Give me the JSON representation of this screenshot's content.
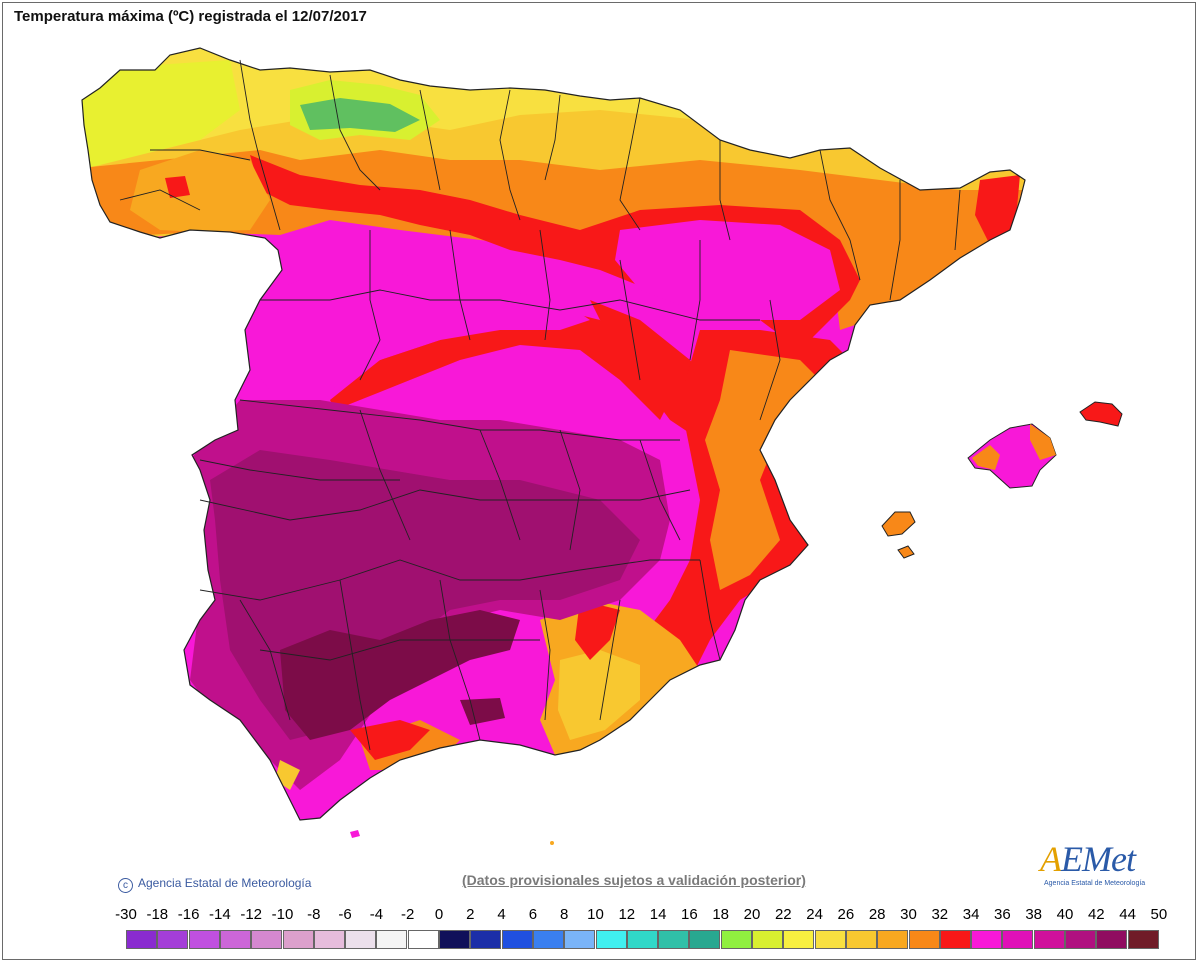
{
  "title": "Temperatura máxima (ºC) registrada el 12/07/2017",
  "copyright": "Agencia Estatal de Meteorología",
  "disclaimer": "(Datos provisionales sujetos a validación posterior)",
  "logo": {
    "wordmark_a": "A",
    "wordmark_rest": "EMet",
    "subtitle": "Agencia Estatal de Meteorología"
  },
  "legend": {
    "labels": [
      "-30",
      "-18",
      "-16",
      "-14",
      "-12",
      "-10",
      "-8",
      "-6",
      "-4",
      "-2",
      "0",
      "2",
      "4",
      "6",
      "8",
      "10",
      "12",
      "14",
      "16",
      "18",
      "20",
      "22",
      "24",
      "26",
      "28",
      "30",
      "32",
      "34",
      "36",
      "38",
      "40",
      "42",
      "44",
      "50"
    ],
    "colors": [
      "#8a2bd0",
      "#a43ed8",
      "#c050e0",
      "#cc66d8",
      "#d488d0",
      "#dca0cc",
      "#e6bcdc",
      "#ece0ec",
      "#f4f4f4",
      "#ffffff",
      "#10105a",
      "#1c2ea8",
      "#2050e0",
      "#3a7ff0",
      "#7ab4f8",
      "#40f0f0",
      "#30d8c8",
      "#30c0a8",
      "#28a890",
      "#90f040",
      "#d8f030",
      "#f8f040",
      "#f8e040",
      "#f8c830",
      "#f8a820",
      "#f88818",
      "#f81818",
      "#f818d8",
      "#e010b8",
      "#d0109c",
      "#b01080",
      "#900c60",
      "#701c28"
    ]
  },
  "map_legend_colors": {
    "sea": "#ffffff",
    "below_24": "#e8f030",
    "cool_north": "#60c060",
    "t28": "#f8c830",
    "t30": "#f88818",
    "t34": "#f81818",
    "t36": "#f818d8",
    "t40": "#c0108c",
    "t42": "#a01070",
    "t44": "#7c0c48",
    "border": "#222222"
  }
}
